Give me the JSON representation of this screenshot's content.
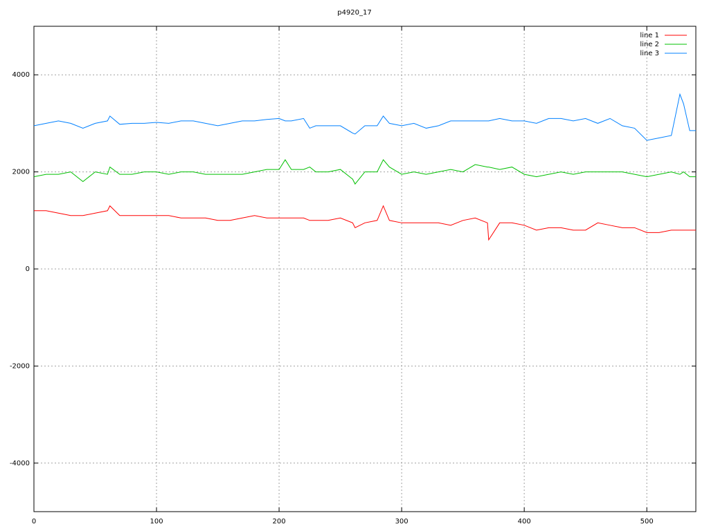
{
  "chart_data": {
    "type": "line",
    "title": "p4920_17",
    "x": [
      0,
      10,
      20,
      30,
      40,
      50,
      60,
      62,
      70,
      80,
      90,
      100,
      110,
      120,
      130,
      140,
      150,
      160,
      170,
      180,
      190,
      200,
      205,
      210,
      220,
      225,
      230,
      240,
      250,
      260,
      262,
      270,
      280,
      285,
      290,
      300,
      310,
      320,
      330,
      340,
      350,
      360,
      370,
      371,
      380,
      390,
      400,
      410,
      420,
      430,
      440,
      450,
      460,
      470,
      480,
      490,
      500,
      510,
      520,
      527,
      530,
      535,
      540
    ],
    "series": [
      {
        "name": "line 1",
        "color": "#ff0000",
        "values": [
          1200,
          1200,
          1150,
          1100,
          1100,
          1150,
          1200,
          1300,
          1100,
          1100,
          1100,
          1100,
          1100,
          1050,
          1050,
          1050,
          1000,
          1000,
          1050,
          1100,
          1050,
          1050,
          1050,
          1050,
          1050,
          1000,
          1000,
          1000,
          1050,
          950,
          850,
          950,
          1000,
          1300,
          1000,
          950,
          950,
          950,
          950,
          900,
          1000,
          1050,
          950,
          600,
          950,
          950,
          900,
          800,
          850,
          850,
          800,
          800,
          950,
          900,
          850,
          850,
          750,
          750,
          800,
          800,
          800,
          800,
          800
        ]
      },
      {
        "name": "line 2",
        "color": "#00c000",
        "values": [
          1900,
          1950,
          1950,
          2000,
          1800,
          2000,
          1950,
          2100,
          1950,
          1950,
          2000,
          2000,
          1950,
          2000,
          2000,
          1950,
          1950,
          1950,
          1950,
          2000,
          2050,
          2050,
          2250,
          2050,
          2050,
          2100,
          2000,
          2000,
          2050,
          1850,
          1750,
          2000,
          2000,
          2250,
          2100,
          1950,
          2000,
          1950,
          2000,
          2050,
          2000,
          2150,
          2100,
          2100,
          2050,
          2100,
          1950,
          1900,
          1950,
          2000,
          1950,
          2000,
          2000,
          2000,
          2000,
          1950,
          1900,
          1950,
          2000,
          1950,
          2000,
          1900,
          1900
        ]
      },
      {
        "name": "line 3",
        "color": "#0080ff",
        "values": [
          2950,
          3000,
          3050,
          3000,
          2900,
          3000,
          3050,
          3150,
          2980,
          3000,
          3000,
          3020,
          3000,
          3050,
          3050,
          3000,
          2950,
          3000,
          3050,
          3050,
          3080,
          3100,
          3050,
          3050,
          3100,
          2900,
          2950,
          2950,
          2950,
          2800,
          2780,
          2950,
          2950,
          3150,
          3000,
          2950,
          3000,
          2900,
          2950,
          3050,
          3050,
          3050,
          3050,
          3050,
          3100,
          3050,
          3050,
          3000,
          3100,
          3100,
          3050,
          3100,
          3000,
          3100,
          2950,
          2900,
          2650,
          2700,
          2750,
          3600,
          3400,
          2850,
          2850
        ]
      }
    ],
    "xlim": [
      0,
      540
    ],
    "xticks": [
      0,
      100,
      200,
      300,
      400,
      500
    ],
    "ylim": [
      -5000,
      5000
    ],
    "yticks": [
      -4000,
      -2000,
      0,
      2000,
      4000
    ],
    "grid": true,
    "legend": "top-right"
  }
}
